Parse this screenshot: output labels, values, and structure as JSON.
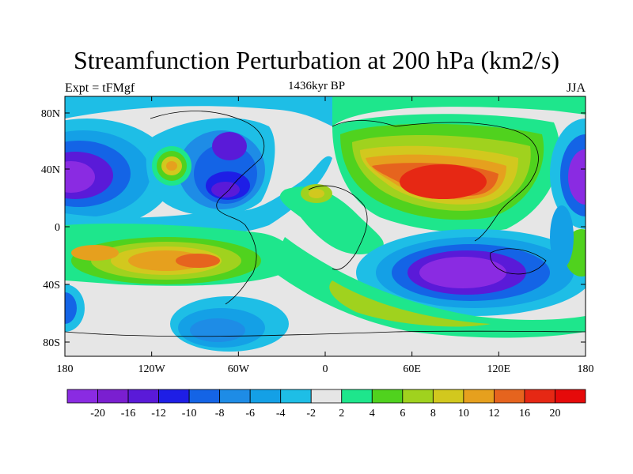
{
  "title": "Streamfunction Perturbation at 200 hPa (km2/s)",
  "left_label": "Expt = tFMgf",
  "center_label": "1436kyr BP",
  "right_label": "JJA",
  "lat_ticks": [
    "80N",
    "40N",
    "0",
    "40S",
    "80S"
  ],
  "lon_ticks": [
    "180",
    "120W",
    "60W",
    "0",
    "60E",
    "120E",
    "180"
  ],
  "colorbar": {
    "labels": [
      "-20",
      "-16",
      "-12",
      "-10",
      "-8",
      "-6",
      "-4",
      "-2",
      "2",
      "4",
      "6",
      "8",
      "10",
      "12",
      "16",
      "20"
    ],
    "colors": [
      "#8a2be2",
      "#7a1fd0",
      "#5a1ad8",
      "#1e1ee6",
      "#1464e6",
      "#1e8ce6",
      "#14a0e6",
      "#1ebee6",
      "#e6e6e6",
      "#1ee68c",
      "#50d21e",
      "#a0d21e",
      "#d2c81e",
      "#e6a01e",
      "#e6641e",
      "#e62814",
      "#e60a0a"
    ]
  },
  "field_colors": {
    "neutral": "#e6e6e6",
    "neg_1": "#1ebee6",
    "neg_2": "#14a0e6",
    "neg_3": "#1e8ce6",
    "neg_4": "#1464e6",
    "neg_5": "#1e1ee6",
    "neg_6": "#5a1ad8",
    "neg_7": "#8a2be2",
    "pos_1": "#1ee68c",
    "pos_2": "#50d21e",
    "pos_3": "#a0d21e",
    "pos_4": "#d2c81e",
    "pos_5": "#e6a01e",
    "pos_6": "#e6641e",
    "pos_7": "#e62814"
  }
}
